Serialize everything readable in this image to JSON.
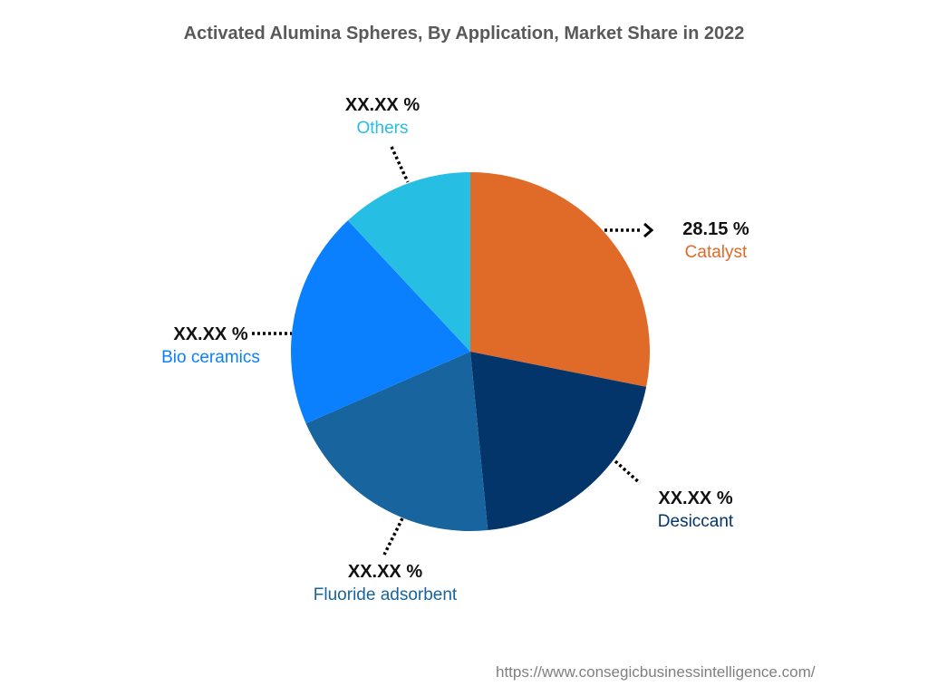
{
  "chart_data": {
    "type": "pie",
    "title": "Activated Alumina Spheres, By Application, Market Share in 2022",
    "slices": [
      {
        "label": "Catalyst",
        "value_text": "28.15 %",
        "value": 28.15,
        "color": "#E06A28"
      },
      {
        "label": "Desiccant",
        "value_text": "XX.XX %",
        "value": 20.3,
        "color": "#04356A"
      },
      {
        "label": "Fluoride adsorbent",
        "value_text": "XX.XX %",
        "value": 20.0,
        "color": "#18649E"
      },
      {
        "label": "Bio ceramics",
        "value_text": "XX.XX %",
        "value": 19.6,
        "color": "#0A80FF"
      },
      {
        "label": "Others",
        "value_text": "XX.XX %",
        "value": 11.95,
        "color": "#27BEE3"
      }
    ]
  },
  "source": "https://www.consegicbusinessintelligence.com/"
}
